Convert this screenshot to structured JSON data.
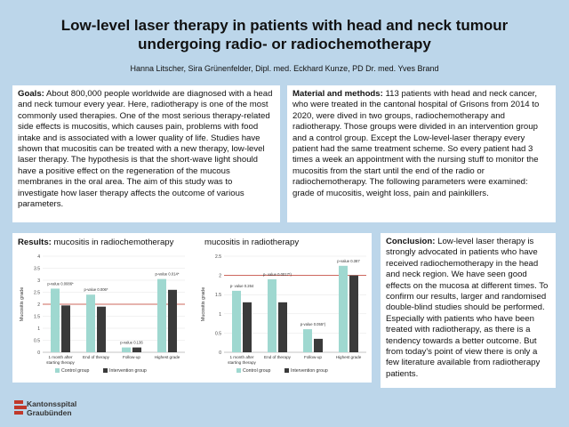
{
  "title_line1": "Low-level laser therapy in patients with head and neck tumour",
  "title_line2": "undergoing radio- or radiochemotherapy",
  "authors": "Hanna Litscher, Sira Grünenfelder, Dipl. med. Eckhard Kunze, PD Dr. med. Yves Brand",
  "goals": {
    "heading": "Goals:",
    "text": " About 800,000 people worldwide are diagnosed with a head and neck tumour every year. Here, radiotherapy is one of the most commonly used therapies. One of the most serious therapy-related side effects is mucositis, which causes pain, problems with food intake and is associated with a lower quality of life. Studies have shown that mucositis can be treated with a new therapy, low-level laser therapy. The hypothesis is that the short-wave light should have a positive effect on the regeneration of the mucous membranes in the oral area. The aim of this study was to investigate how laser therapy affects the outcome of various parameters."
  },
  "methods": {
    "heading": "Material and methods:",
    "text": " 113 patients with head and neck cancer, who were treated in the cantonal hospital of Grisons from 2014 to 2020, were dived in two groups, radiochemotherapy and radiotherapy. Those groups were divided in an intervention group and a control group. Except the Low-level-laser therapy every patient had the same treatment scheme. So every patient had 3 times a week an appointment with the nursing stuff to monitor the mucositis from the start until the end of the radio or radiochemotherapy. The following parameters were examined: grade of mucositis, weight loss, pain and painkillers."
  },
  "results": {
    "heading": "Results:",
    "chart1_title": " mucositis in radiochemotherapy",
    "chart2_title": "mucositis in radiotherapy"
  },
  "conclusion": {
    "heading": "Conclusion:",
    "text": " Low-level laser therapy is strongly advocated in patients who have received radiochemotherapy in the head and neck region. We have seen good effects on the mucosa at different times. To confirm our results, larger and randomised double-blind studies should be performed. Especially with patients who have been treated with radiotherapy, as there is a tendency towards a better outcome. But from today's point of view there is only a few literature available from radiotherapy patients."
  },
  "logo": {
    "line1": "Kantonsspital",
    "line2": "Graubünden"
  },
  "colors": {
    "control": "#9fd8d0",
    "intervention": "#3a3a3a",
    "refline": "#c0392b"
  },
  "chart_data": [
    {
      "type": "bar",
      "ylabel": "Mucositis grade",
      "ylim": [
        0,
        4
      ],
      "yticks": [
        "0",
        "0.5",
        "1",
        "1.5",
        "2",
        "2.5",
        "3",
        "3.5",
        "4"
      ],
      "categories": [
        "1 month after starting therapy",
        "End of therapy",
        "Follow-up",
        "Highest grade"
      ],
      "pvalues": [
        "p-value 0.0086*",
        "p-value 0.006*",
        "p-value 0.136",
        "p-value 0.014*"
      ],
      "series": [
        {
          "name": "Control group",
          "values": [
            2.65,
            2.4,
            0.2,
            3.05
          ]
        },
        {
          "name": "Intervention group",
          "values": [
            1.95,
            1.9,
            0.2,
            2.6
          ]
        }
      ],
      "refline": 2.0
    },
    {
      "type": "bar",
      "ylabel": "Mucositis grade",
      "ylim": [
        0,
        2.5
      ],
      "yticks": [
        "0",
        "0.5",
        "1",
        "1.5",
        "2",
        "2.5"
      ],
      "categories": [
        "1 month after starting therapy",
        "End of therapy",
        "Follow-up",
        "Highest grade"
      ],
      "pvalues": [
        "p- value 0.264",
        "p- value 0.0017*)",
        "p-value 0.055*)",
        "p-value 0.387"
      ],
      "series": [
        {
          "name": "Control group",
          "values": [
            1.6,
            1.9,
            0.6,
            2.25
          ]
        },
        {
          "name": "Intervention group",
          "values": [
            1.3,
            1.3,
            0.35,
            2.0
          ]
        }
      ],
      "refline": 2.0
    }
  ]
}
